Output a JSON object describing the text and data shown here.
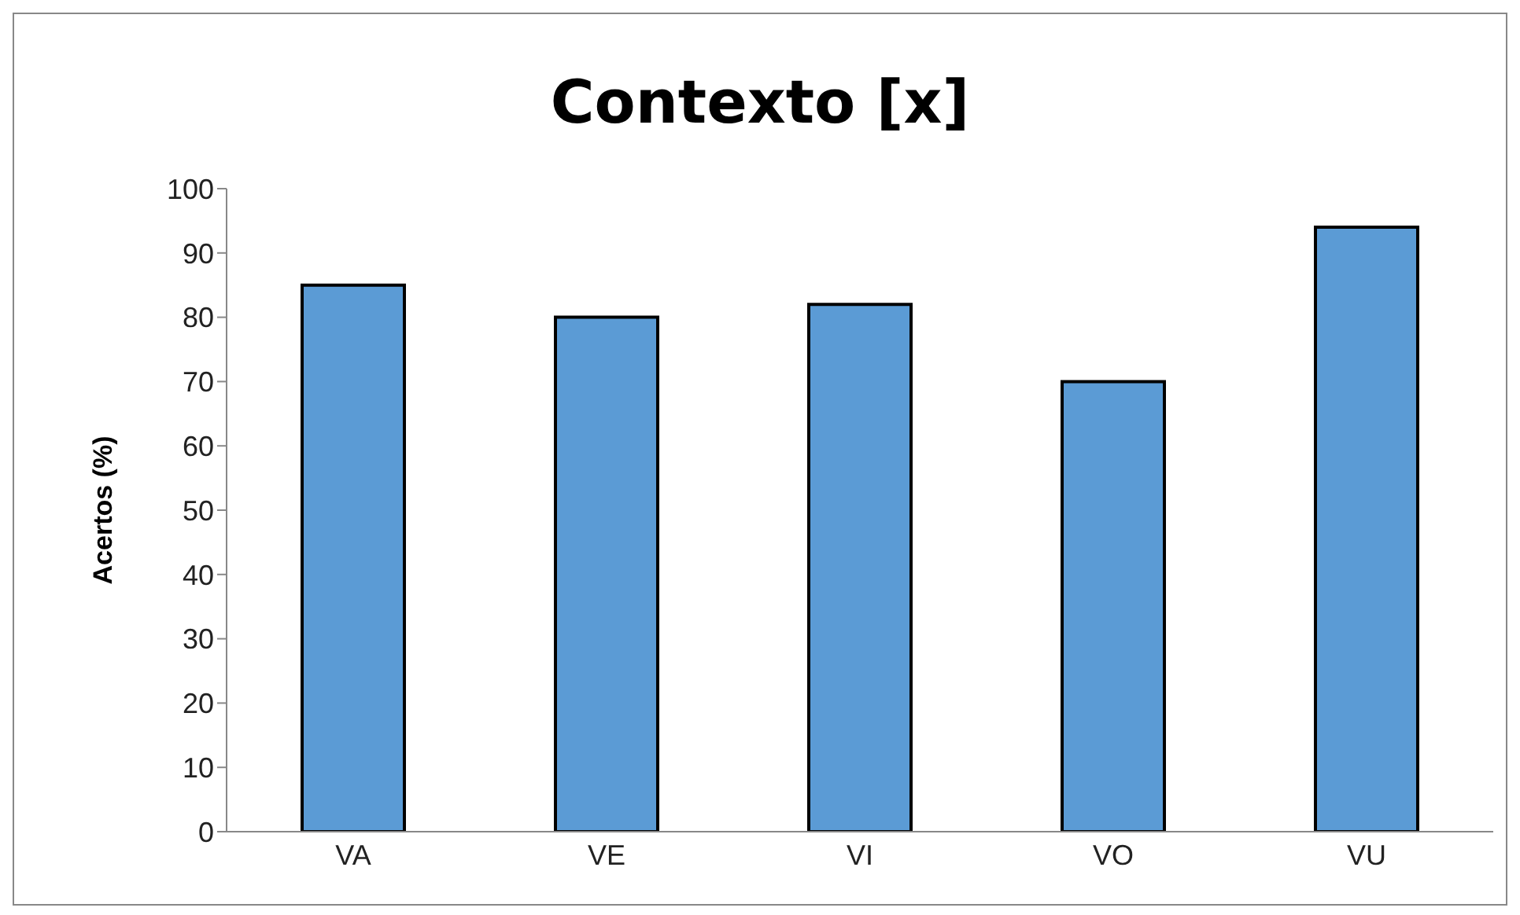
{
  "chart_data": {
    "type": "bar",
    "title": "Contexto [x]",
    "ylabel": "Acertos (%)",
    "categories": [
      "VA",
      "VE",
      "VI",
      "VO",
      "VU"
    ],
    "values": [
      85,
      80,
      82,
      70,
      94
    ],
    "color": "#5b9bd5",
    "ylim": [
      0,
      100
    ],
    "yticks": [
      0,
      10,
      20,
      30,
      40,
      50,
      60,
      70,
      80,
      90,
      100
    ],
    "grid": false,
    "legend": false
  }
}
